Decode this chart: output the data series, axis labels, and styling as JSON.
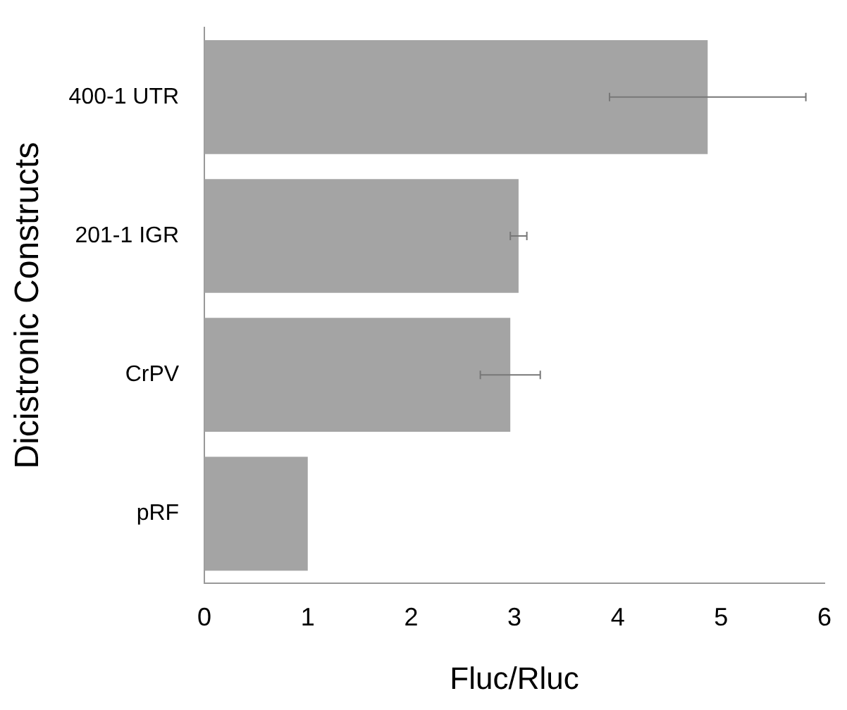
{
  "chart_data": {
    "type": "bar",
    "orientation": "horizontal",
    "xlabel": "Fluc/Rluc",
    "ylabel": "Dicistronic Constructs",
    "categories": [
      "400-1 UTR",
      "201-1 IGR",
      "CrPV",
      "pRF"
    ],
    "values": [
      4.87,
      3.04,
      2.96,
      1.0
    ],
    "errors": [
      0.95,
      0.08,
      0.29,
      null
    ],
    "color": "#a4a4a4",
    "xlim": [
      0,
      6
    ],
    "xticks": [
      0,
      1,
      2,
      3,
      4,
      5,
      6
    ],
    "grid": false,
    "legend": false
  }
}
